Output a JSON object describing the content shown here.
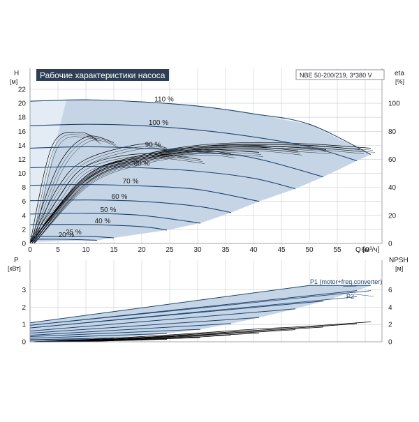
{
  "header": {
    "title": "Рабочие характеристики насоса",
    "model": "NBE 50-200/219, 3*380 V"
  },
  "colors": {
    "title_bg": "#2d3e55",
    "curve": "#1f4470",
    "area_fill": "#c5d5e6",
    "area_fill_light": "#e3ecf5",
    "grid": "#c9ccd2",
    "eff": "#000000",
    "axis": "#8a8f98"
  },
  "chart_data": [
    {
      "type": "line",
      "title": "Рабочие характеристики насоса",
      "xlabel": "Q [м³/ч]",
      "ylabel": "H [м]",
      "y2label": "eta [%]",
      "xlim": [
        0,
        63
      ],
      "ylim": [
        0,
        22
      ],
      "y2lim": [
        0,
        110
      ],
      "grid": true,
      "x_ticks": [
        0,
        5,
        10,
        15,
        20,
        25,
        30,
        35,
        40,
        45,
        50,
        55,
        60
      ],
      "y_ticks": [
        0,
        2,
        4,
        6,
        8,
        10,
        12,
        14,
        16,
        18,
        20,
        22
      ],
      "y2_ticks": [
        0,
        20,
        40,
        60,
        80,
        100
      ],
      "head_series": [
        {
          "name": "110 %",
          "x": [
            0,
            10,
            20,
            30,
            40,
            50,
            61
          ],
          "values": [
            20.3,
            20.5,
            20.2,
            19.6,
            18.5,
            17.0,
            12.7
          ]
        },
        {
          "name": "100 %",
          "x": [
            0,
            10,
            20,
            30,
            40,
            50,
            58.5
          ],
          "values": [
            16.8,
            17.0,
            16.8,
            16.2,
            15.2,
            13.8,
            11.8
          ]
        },
        {
          "name": "90 %",
          "x": [
            0,
            10,
            20,
            30,
            40,
            52.5
          ],
          "values": [
            13.6,
            13.8,
            13.6,
            13.1,
            12.2,
            9.5
          ]
        },
        {
          "name": "80 %",
          "x": [
            0,
            10,
            20,
            30,
            40,
            47.5
          ],
          "values": [
            10.8,
            11.0,
            10.8,
            10.3,
            9.3,
            7.8
          ]
        },
        {
          "name": "70 %",
          "x": [
            0,
            10,
            20,
            30,
            41
          ],
          "values": [
            8.3,
            8.4,
            8.2,
            7.7,
            6.0
          ]
        },
        {
          "name": "60 %",
          "x": [
            0,
            10,
            20,
            30,
            36
          ],
          "values": [
            6.1,
            6.2,
            6.0,
            5.3,
            4.4
          ]
        },
        {
          "name": "50 %",
          "x": [
            0,
            10,
            20,
            30.5
          ],
          "values": [
            4.2,
            4.3,
            4.0,
            2.9
          ]
        },
        {
          "name": "40 %",
          "x": [
            0,
            10,
            20,
            24.5
          ],
          "values": [
            2.7,
            2.7,
            2.4,
            1.9
          ]
        },
        {
          "name": "25 %",
          "x": [
            0,
            10,
            15
          ],
          "values": [
            1.0,
            1.0,
            0.8
          ]
        },
        {
          "name": "20 %",
          "x": [
            0,
            6,
            12
          ],
          "values": [
            0.6,
            0.6,
            0.45
          ]
        }
      ],
      "curve_labels": [
        "110 %",
        "100 %",
        "90 %",
        "80 %",
        "70 %",
        "60 %",
        "50 %",
        "40 %",
        "25 %",
        "20 %"
      ],
      "efficiency_series": [
        {
          "x": [
            0,
            10,
            20,
            30,
            40,
            50,
            61
          ],
          "values": [
            0,
            48,
            63,
            70,
            72,
            71,
            68
          ]
        },
        {
          "x": [
            0,
            10,
            20,
            30,
            40,
            50,
            59
          ],
          "values": [
            0,
            48,
            63,
            69,
            71,
            70,
            67
          ]
        },
        {
          "x": [
            0,
            10,
            20,
            30,
            40,
            53
          ],
          "values": [
            0,
            48,
            62,
            69,
            70,
            67
          ]
        },
        {
          "x": [
            0,
            10,
            20,
            30,
            40,
            48
          ],
          "values": [
            0,
            47,
            62,
            68,
            69,
            66
          ]
        },
        {
          "x": [
            0,
            10,
            20,
            30,
            41
          ],
          "values": [
            0,
            46,
            61,
            67,
            65
          ]
        },
        {
          "x": [
            0,
            10,
            20,
            30,
            36
          ],
          "values": [
            0,
            45,
            60,
            66,
            64
          ]
        },
        {
          "x": [
            0,
            5,
            10,
            20,
            30.5
          ],
          "values": [
            0,
            32,
            55,
            64,
            60
          ]
        },
        {
          "x": [
            0,
            5,
            10,
            20,
            24.5
          ],
          "values": [
            0,
            40,
            60,
            71,
            68
          ]
        },
        {
          "x": [
            0,
            5,
            10,
            15
          ],
          "values": [
            0,
            55,
            76,
            72
          ]
        },
        {
          "x": [
            0,
            4,
            9,
            12
          ],
          "values": [
            0,
            70,
            79,
            74
          ]
        }
      ]
    },
    {
      "type": "line",
      "xlabel": "",
      "ylabel": "P [кВт]",
      "y2label": "NPSH [м]",
      "xlim": [
        0,
        63
      ],
      "ylim": [
        0,
        3.5
      ],
      "y2lim": [
        0,
        7
      ],
      "grid": true,
      "x_ticks": [
        0,
        5,
        10,
        15,
        20,
        25,
        30,
        35,
        40,
        45,
        50,
        55,
        60
      ],
      "y_ticks": [
        0,
        1,
        2,
        3
      ],
      "y2_ticks": [
        0,
        2,
        4,
        6
      ],
      "legend": [
        "P1 (motor+freq.converter)",
        "P2"
      ],
      "p1_series": [
        {
          "x": [
            0,
            50,
            61
          ],
          "values": [
            1.1,
            3.25,
            3.25
          ]
        },
        {
          "x": [
            0,
            58.5
          ],
          "values": [
            0.95,
            2.95
          ]
        },
        {
          "x": [
            0,
            52.5
          ],
          "values": [
            0.8,
            2.35
          ]
        },
        {
          "x": [
            0,
            47.5
          ],
          "values": [
            0.62,
            1.9
          ]
        },
        {
          "x": [
            0,
            41
          ],
          "values": [
            0.5,
            1.4
          ]
        },
        {
          "x": [
            0,
            36
          ],
          "values": [
            0.38,
            1.05
          ]
        },
        {
          "x": [
            0,
            30.5
          ],
          "values": [
            0.3,
            0.72
          ]
        },
        {
          "x": [
            0,
            24.5
          ],
          "values": [
            0.2,
            0.48
          ]
        },
        {
          "x": [
            0,
            15
          ],
          "values": [
            0.12,
            0.22
          ]
        },
        {
          "x": [
            0,
            12
          ],
          "values": [
            0.08,
            0.14
          ]
        }
      ],
      "p2_series": [
        {
          "x": [
            0,
            61
          ],
          "values": [
            0.95,
            2.95
          ]
        },
        {
          "x": [
            0,
            58.5
          ],
          "values": [
            0.8,
            2.6
          ]
        }
      ],
      "npsh_series": [
        {
          "x": [
            0,
            10,
            20,
            30,
            40,
            50,
            61
          ],
          "values": [
            0.0,
            0.25,
            0.6,
            1.0,
            1.45,
            1.8,
            2.3
          ]
        },
        {
          "x": [
            0,
            10,
            20,
            30,
            40,
            50,
            58.5
          ],
          "values": [
            0.0,
            0.2,
            0.5,
            0.9,
            1.3,
            1.7,
            2.1
          ]
        },
        {
          "x": [
            0,
            10,
            20,
            30,
            40,
            52.5
          ],
          "values": [
            0.0,
            0.18,
            0.45,
            0.8,
            1.2,
            1.7
          ]
        },
        {
          "x": [
            0,
            10,
            20,
            30,
            40,
            47.5
          ],
          "values": [
            0.0,
            0.15,
            0.4,
            0.75,
            1.1,
            1.4
          ]
        },
        {
          "x": [
            0,
            10,
            20,
            30,
            41
          ],
          "values": [
            0.0,
            0.12,
            0.35,
            0.65,
            1.0
          ]
        },
        {
          "x": [
            0,
            10,
            20,
            30,
            36
          ],
          "values": [
            0.0,
            0.1,
            0.3,
            0.55,
            0.8
          ]
        },
        {
          "x": [
            0,
            10,
            20,
            30.5
          ],
          "values": [
            0.0,
            0.08,
            0.25,
            0.5
          ]
        },
        {
          "x": [
            0,
            10,
            20,
            24.5
          ],
          "values": [
            0.0,
            0.06,
            0.2,
            0.3
          ]
        },
        {
          "x": [
            0,
            10,
            15
          ],
          "values": [
            0.0,
            0.05,
            0.12
          ]
        },
        {
          "x": [
            0,
            6,
            12
          ],
          "values": [
            0.0,
            0.04,
            0.1
          ]
        }
      ]
    }
  ],
  "axis_text": {
    "top_left_letter": "H",
    "top_left_unit": "[м]",
    "top_right_letter": "eta",
    "top_right_unit": "[%]",
    "top_x_label": "Q [м³/ч]",
    "bottom_left_letter": "P",
    "bottom_left_unit": "[кВт]",
    "bottom_right_letter": "NPSH",
    "bottom_right_unit": "[м]"
  }
}
